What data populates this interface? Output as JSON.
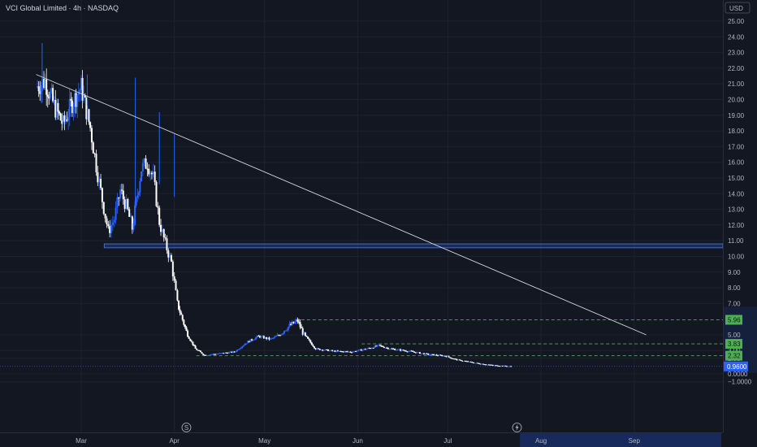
{
  "header": {
    "title": "VCI Global Limited · 4h · NASDAQ",
    "currency": "USD"
  },
  "colors": {
    "background": "#131722",
    "up": "#2962ff",
    "down": "#ffffff",
    "level_line": "#4caf50",
    "level_badge": "#4caf50",
    "current_badge": "#2962ff",
    "trendline": "#d1d4dc",
    "zone": "#2962ff"
  },
  "icons": {
    "split_marker": "S",
    "event_marker": "lightning-icon"
  },
  "chart_data": {
    "type": "candlestick",
    "title": "VCI Global Limited · 4h · NASDAQ",
    "y_ticks": [
      "25.00",
      "24.00",
      "23.00",
      "22.00",
      "21.00",
      "20.00",
      "19.00",
      "18.00",
      "17.00",
      "16.00",
      "15.00",
      "14.00",
      "13.00",
      "12.00",
      "11.00",
      "10.00",
      "9.00",
      "8.00",
      "7.00",
      "5.00",
      "3.00",
      "2.00",
      "0.0000",
      "−1.0000"
    ],
    "x_ticks": [
      "Mar",
      "Apr",
      "May",
      "Jun",
      "Jul",
      "Aug",
      "Sep"
    ],
    "price_levels": [
      {
        "label": "5.96",
        "value": 5.96
      },
      {
        "label": "3.83",
        "value": 3.83
      },
      {
        "label": "2.32",
        "value": 2.32
      }
    ],
    "current_price": {
      "label": "0.9600",
      "value": 0.96
    },
    "resistance_zone": {
      "low": 10.55,
      "high": 10.8
    },
    "trendline": {
      "start": {
        "date": "Feb 15",
        "value": 21.6
      },
      "end": {
        "date": "Sep 5",
        "value": 5.0
      }
    },
    "series": [
      {
        "date": "Feb 15",
        "close": 20.8
      },
      {
        "date": "Feb 18",
        "close": 21.2
      },
      {
        "date": "Feb 21",
        "close": 19.6
      },
      {
        "date": "Feb 24",
        "close": 18.4
      },
      {
        "date": "Feb 27",
        "close": 19.8
      },
      {
        "date": "Mar 1",
        "close": 20.8
      },
      {
        "date": "Mar 4",
        "close": 18.2
      },
      {
        "date": "Mar 6",
        "close": 15.8
      },
      {
        "date": "Mar 8",
        "close": 13.6
      },
      {
        "date": "Mar 10",
        "close": 11.6
      },
      {
        "date": "Mar 12",
        "close": 12.4
      },
      {
        "date": "Mar 14",
        "close": 14.2
      },
      {
        "date": "Mar 16",
        "close": 13.2
      },
      {
        "date": "Mar 18",
        "close": 11.8
      },
      {
        "date": "Mar 21",
        "close": 15.6
      },
      {
        "date": "Mar 23",
        "close": 16.0
      },
      {
        "date": "Mar 25",
        "close": 15.0
      },
      {
        "date": "Mar 27",
        "close": 12.2
      },
      {
        "date": "Mar 29",
        "close": 10.8
      },
      {
        "date": "Mar 31",
        "close": 9.6
      },
      {
        "date": "Apr 2",
        "close": 7.0
      },
      {
        "date": "Apr 5",
        "close": 5.2
      },
      {
        "date": "Apr 8",
        "close": 3.2
      },
      {
        "date": "Apr 11",
        "close": 2.4
      },
      {
        "date": "Apr 16",
        "close": 2.6
      },
      {
        "date": "Apr 21",
        "close": 2.8
      },
      {
        "date": "Apr 25",
        "close": 4.0
      },
      {
        "date": "Apr 29",
        "close": 4.8
      },
      {
        "date": "May 3",
        "close": 4.4
      },
      {
        "date": "May 8",
        "close": 5.4
      },
      {
        "date": "May 12",
        "close": 5.9
      },
      {
        "date": "May 15",
        "close": 4.6
      },
      {
        "date": "May 18",
        "close": 3.2
      },
      {
        "date": "May 24",
        "close": 2.9
      },
      {
        "date": "May 30",
        "close": 2.8
      },
      {
        "date": "Jun 4",
        "close": 3.2
      },
      {
        "date": "Jun 8",
        "close": 3.6
      },
      {
        "date": "Jun 12",
        "close": 3.2
      },
      {
        "date": "Jun 18",
        "close": 2.9
      },
      {
        "date": "Jun 24",
        "close": 2.5
      },
      {
        "date": "Jun 30",
        "close": 2.3
      },
      {
        "date": "Jul 4",
        "close": 1.8
      },
      {
        "date": "Jul 10",
        "close": 1.4
      },
      {
        "date": "Jul 16",
        "close": 1.1
      },
      {
        "date": "Jul 22",
        "close": 0.96
      }
    ]
  }
}
